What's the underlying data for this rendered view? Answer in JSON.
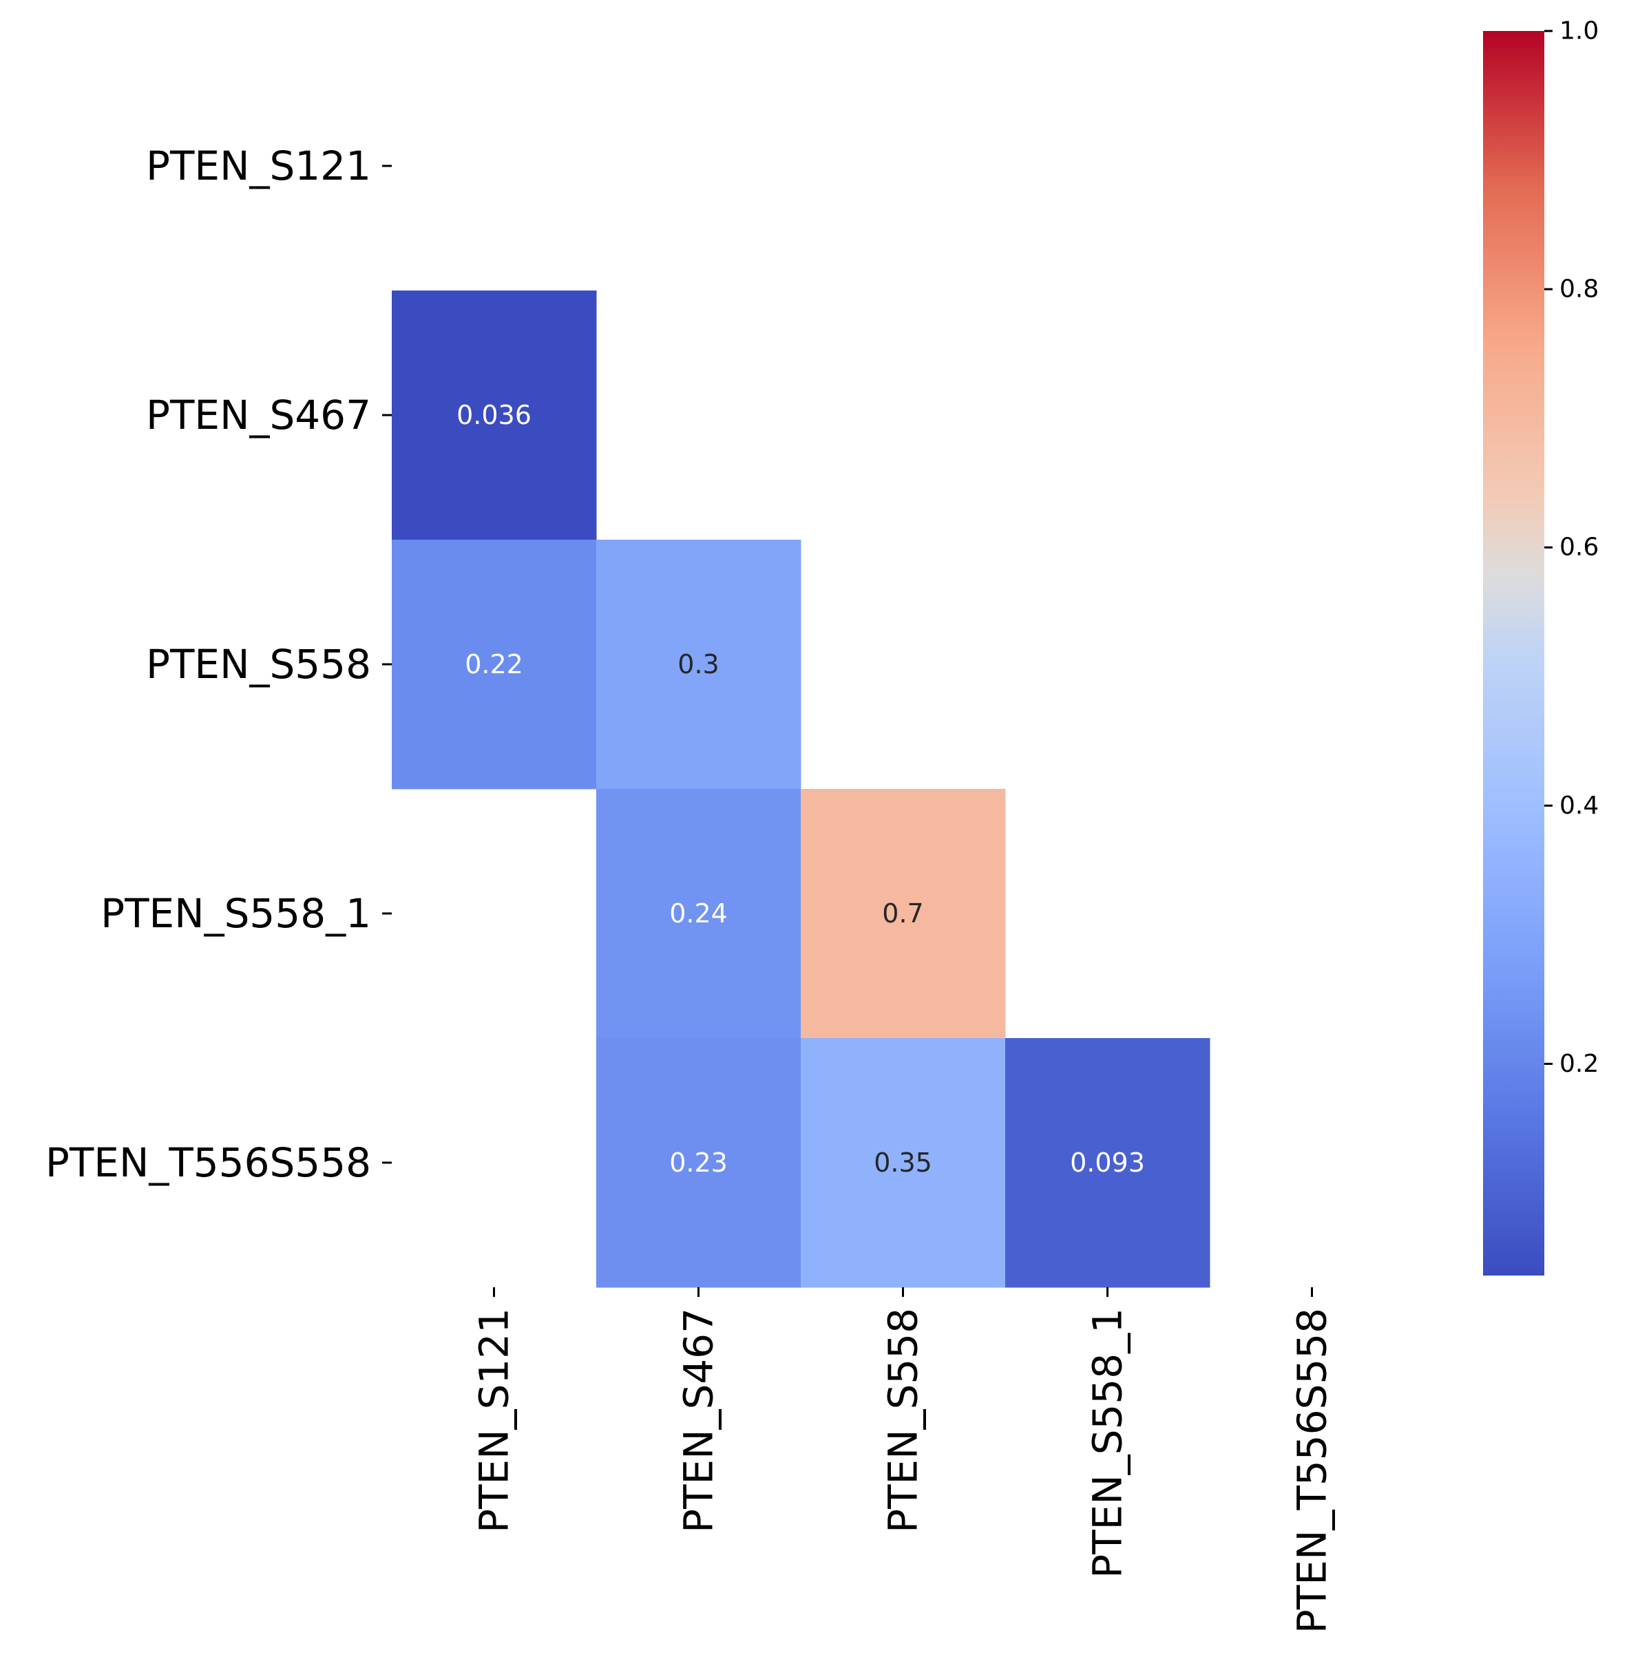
{
  "chart_data": {
    "type": "heatmap",
    "colormap": "coolwarm",
    "rows": [
      "PTEN_S121",
      "PTEN_S467",
      "PTEN_S558",
      "PTEN_S558_1",
      "PTEN_T556S558"
    ],
    "columns": [
      "PTEN_S121",
      "PTEN_S467",
      "PTEN_S558",
      "PTEN_S558_1",
      "PTEN_T556S558"
    ],
    "values": [
      [
        null,
        null,
        null,
        null,
        null
      ],
      [
        0.036,
        null,
        null,
        null,
        null
      ],
      [
        0.22,
        0.3,
        null,
        null,
        null
      ],
      [
        null,
        0.24,
        0.7,
        null,
        null
      ],
      [
        null,
        0.23,
        0.35,
        0.093,
        null
      ]
    ],
    "cell_labels": [
      [
        null,
        null,
        null,
        null,
        null
      ],
      [
        "0.036",
        null,
        null,
        null,
        null
      ],
      [
        "0.22",
        "0.3",
        null,
        null,
        null
      ],
      [
        null,
        "0.24",
        "0.7",
        null,
        null
      ],
      [
        null,
        "0.23",
        "0.35",
        "0.093",
        null
      ]
    ],
    "colorbar": {
      "min": 0.036,
      "max": 1.0,
      "ticks": [
        0.2,
        0.4,
        0.6,
        0.8,
        1.0
      ],
      "tick_labels": [
        "0.2",
        "0.4",
        "0.6",
        "0.8",
        "1.0"
      ]
    },
    "title": "",
    "xlabel": "",
    "ylabel": ""
  }
}
